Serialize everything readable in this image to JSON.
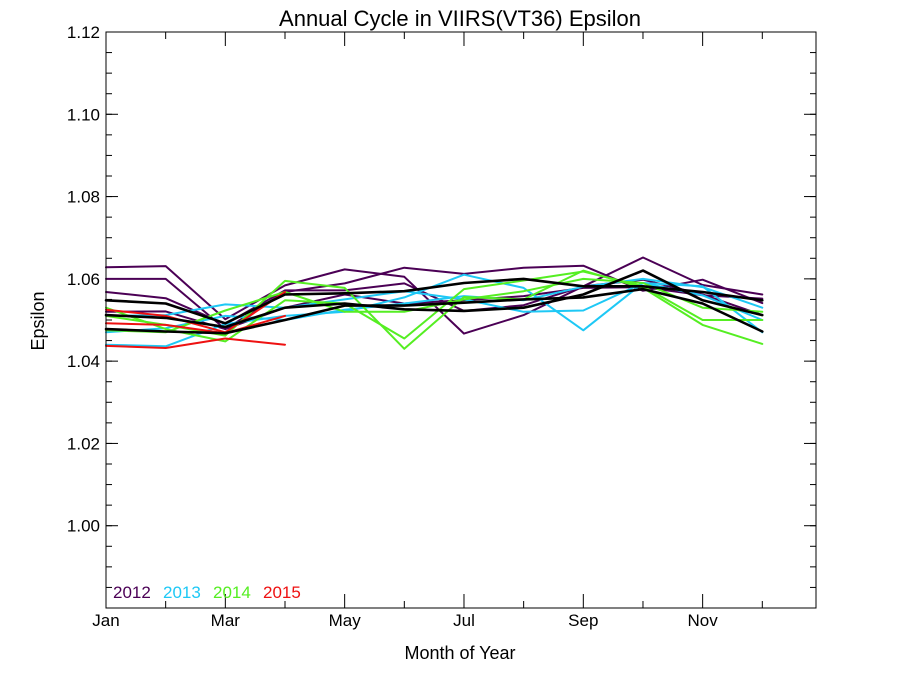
{
  "chart_data": {
    "type": "line",
    "title": "Annual Cycle in VIIRS(VT36) Epsilon",
    "xlabel": "Month of Year",
    "ylabel": "Epsilon",
    "xlim": [
      1,
      12.9
    ],
    "ylim": [
      0.98,
      1.12
    ],
    "x_ticks": [
      {
        "value": 1,
        "label": "Jan"
      },
      {
        "value": 3,
        "label": "Mar"
      },
      {
        "value": 5,
        "label": "May"
      },
      {
        "value": 7,
        "label": "Jul"
      },
      {
        "value": 9,
        "label": "Sep"
      },
      {
        "value": 11,
        "label": "Nov"
      }
    ],
    "x_minor_ticks": [
      2,
      4,
      6,
      8,
      10,
      12
    ],
    "y_ticks": [
      {
        "value": 1.0,
        "label": "1.00"
      },
      {
        "value": 1.02,
        "label": "1.02"
      },
      {
        "value": 1.04,
        "label": "1.04"
      },
      {
        "value": 1.06,
        "label": "1.06"
      },
      {
        "value": 1.08,
        "label": "1.08"
      },
      {
        "value": 1.1,
        "label": "1.10"
      },
      {
        "value": 1.12,
        "label": "1.12"
      }
    ],
    "x": [
      1,
      2,
      3,
      4,
      5,
      6,
      7,
      8,
      9,
      10,
      11,
      12
    ],
    "legend": {
      "placement": "bottom-left",
      "entries": [
        {
          "label": "2012",
          "color": "#4b0055"
        },
        {
          "label": "2013",
          "color": "#1ec8f5"
        },
        {
          "label": "2014",
          "color": "#55ee22"
        },
        {
          "label": "2015",
          "color": "#ee1111"
        }
      ]
    },
    "series": [
      {
        "group": "2012",
        "color": "#4b0055",
        "values": [
          1.0628,
          1.0631,
          1.0502,
          1.0584,
          1.0623,
          1.0605,
          1.0467,
          1.0512,
          1.0582,
          1.0652,
          1.0585,
          1.0562
        ]
      },
      {
        "group": "2012",
        "color": "#4b0055",
        "values": [
          1.06,
          1.06,
          1.0478,
          1.0568,
          1.0589,
          1.0627,
          1.0612,
          1.0627,
          1.0632,
          1.0571,
          1.0598,
          1.0541
        ]
      },
      {
        "group": "2012",
        "color": "#4b0055",
        "values": [
          1.0568,
          1.0553,
          1.049,
          1.0572,
          1.0572,
          1.0589,
          1.0522,
          1.0536,
          1.0582,
          1.0598,
          1.0562,
          1.0512
        ]
      },
      {
        "group": "2012",
        "color": "#4b0055",
        "values": [
          1.052,
          1.0521,
          1.0478,
          1.053,
          1.0562,
          1.054,
          1.0548,
          1.0558,
          1.0578,
          1.058,
          1.056,
          1.0552
        ]
      },
      {
        "group": "2013",
        "color": "#1ec8f5",
        "values": [
          1.044,
          1.0436,
          1.049,
          1.051,
          1.052,
          1.0555,
          1.061,
          1.0578,
          1.0475,
          1.059,
          1.0582,
          1.047
        ]
      },
      {
        "group": "2013",
        "color": "#1ec8f5",
        "values": [
          1.051,
          1.0512,
          1.0538,
          1.053,
          1.055,
          1.057,
          1.055,
          1.052,
          1.0523,
          1.059,
          1.056,
          1.05
        ]
      },
      {
        "group": "2013",
        "color": "#1ec8f5",
        "values": [
          1.047,
          1.048,
          1.051,
          1.05,
          1.0525,
          1.054,
          1.0558,
          1.0548,
          1.0581,
          1.06,
          1.058,
          1.053
        ]
      },
      {
        "group": "2014",
        "color": "#55ee22",
        "values": [
          1.051,
          1.0488,
          1.0462,
          1.0595,
          1.0578,
          1.043,
          1.0556,
          1.055,
          1.062,
          1.0578,
          1.0488,
          1.0442
        ]
      },
      {
        "group": "2014",
        "color": "#55ee22",
        "values": [
          1.053,
          1.0478,
          1.0448,
          1.0548,
          1.054,
          1.0455,
          1.0575,
          1.0596,
          1.0618,
          1.0582,
          1.05,
          1.05
        ]
      },
      {
        "group": "2014",
        "color": "#55ee22",
        "values": [
          1.0475,
          1.047,
          1.0523,
          1.0568,
          1.052,
          1.052,
          1.055,
          1.057,
          1.06,
          1.059,
          1.053,
          1.052
        ]
      },
      {
        "group": "2015",
        "color": "#ee1111",
        "values": [
          1.0525,
          1.051,
          1.047,
          1.0568,
          null,
          null,
          null,
          null,
          null,
          null,
          null,
          null
        ]
      },
      {
        "group": "2015",
        "color": "#ee1111",
        "values": [
          1.0492,
          1.0488,
          1.0468,
          1.051,
          null,
          null,
          null,
          null,
          null,
          null,
          null,
          null
        ]
      },
      {
        "group": "2015",
        "color": "#ee1111",
        "values": [
          1.0437,
          1.0432,
          1.0455,
          1.044,
          null,
          null,
          null,
          null,
          null,
          null,
          null,
          null
        ]
      },
      {
        "group": "mean",
        "color": "#000000",
        "values": [
          1.0548,
          1.054,
          1.0492,
          1.0562,
          1.0565,
          1.057,
          1.059,
          1.06,
          1.0582,
          1.0582,
          1.0568,
          1.0548
        ]
      },
      {
        "group": "mean",
        "color": "#000000",
        "values": [
          1.0512,
          1.0505,
          1.0483,
          1.053,
          1.054,
          1.0526,
          1.0522,
          1.053,
          1.0562,
          1.062,
          1.0548,
          1.0512
        ]
      },
      {
        "group": "mean",
        "color": "#000000",
        "values": [
          1.0478,
          1.0472,
          1.0468,
          1.05,
          1.0535,
          1.0535,
          1.0542,
          1.055,
          1.0555,
          1.0575,
          1.054,
          1.0472
        ]
      }
    ]
  }
}
